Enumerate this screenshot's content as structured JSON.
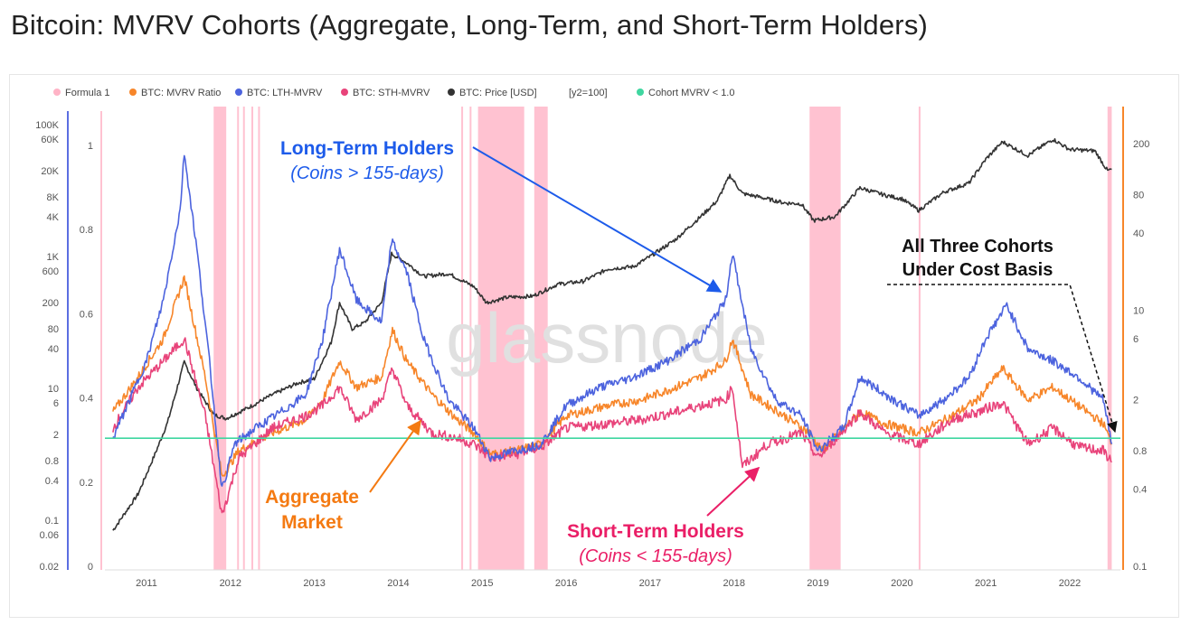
{
  "title": "Bitcoin: MVRV Cohorts (Aggregate, Long-Term, and Short-Term Holders)",
  "chart_data": {
    "type": "line",
    "title": "Bitcoin: MVRV Cohorts (Aggregate, Long-Term, and Short-Term Holders)",
    "legend": [
      {
        "name": "Formula 1",
        "color": "#ffb3c6"
      },
      {
        "name": "BTC: MVRV Ratio",
        "color": "#f7862a"
      },
      {
        "name": "BTC: LTH-MVRV",
        "color": "#4c63de"
      },
      {
        "name": "BTC: STH-MVRV",
        "color": "#e8437a"
      },
      {
        "name": "BTC: Price [USD]",
        "color": "#333333"
      },
      {
        "name": "[y2=100]",
        "color": ""
      },
      {
        "name": "Cohort MVRV < 1.0",
        "color": "#3fd6a0"
      }
    ],
    "x_ticks": [
      "2011",
      "2012",
      "2013",
      "2014",
      "2015",
      "2016",
      "2017",
      "2018",
      "2019",
      "2020",
      "2021",
      "2022"
    ],
    "y_price_ticks": [
      "100K",
      "60K",
      "20K",
      "8K",
      "4K",
      "1K",
      "600",
      "200",
      "80",
      "40",
      "10",
      "6",
      "2",
      "0.8",
      "0.4",
      "0.1",
      "0.06",
      "0.02"
    ],
    "y_formula_ticks": [
      "1",
      "0.8",
      "0.6",
      "0.4",
      "0.2",
      "0"
    ],
    "y_right_ticks": [
      "200",
      "80",
      "40",
      "10",
      "6",
      "2",
      "0.8",
      "0.4",
      "0.1"
    ],
    "watermark": "glassnode",
    "threshold": 1.0,
    "shaded_periods": [
      [
        2011.8,
        2011.95
      ],
      [
        2012.08,
        2012.1
      ],
      [
        2012.15,
        2012.17
      ],
      [
        2012.25,
        2012.27
      ],
      [
        2012.33,
        2012.35
      ],
      [
        2014.75,
        2014.77
      ],
      [
        2014.85,
        2014.87
      ],
      [
        2014.95,
        2015.5
      ],
      [
        2015.62,
        2015.78
      ],
      [
        2018.9,
        2019.27
      ],
      [
        2020.2,
        2020.22
      ],
      [
        2022.45,
        2022.5
      ]
    ],
    "series": [
      {
        "name": "BTC: Price [USD]",
        "points": [
          [
            2010.6,
            0.07
          ],
          [
            2010.9,
            0.25
          ],
          [
            2011.1,
            1
          ],
          [
            2011.25,
            3
          ],
          [
            2011.45,
            25
          ],
          [
            2011.6,
            10
          ],
          [
            2011.8,
            4
          ],
          [
            2011.95,
            3.5
          ],
          [
            2012.2,
            5
          ],
          [
            2012.5,
            8
          ],
          [
            2012.8,
            12
          ],
          [
            2013.0,
            14
          ],
          [
            2013.2,
            50
          ],
          [
            2013.3,
            200
          ],
          [
            2013.45,
            80
          ],
          [
            2013.6,
            100
          ],
          [
            2013.8,
            200
          ],
          [
            2013.92,
            1100
          ],
          [
            2014.1,
            800
          ],
          [
            2014.3,
            500
          ],
          [
            2014.6,
            550
          ],
          [
            2014.9,
            350
          ],
          [
            2015.05,
            200
          ],
          [
            2015.3,
            240
          ],
          [
            2015.6,
            250
          ],
          [
            2015.9,
            380
          ],
          [
            2016.2,
            420
          ],
          [
            2016.5,
            650
          ],
          [
            2016.8,
            700
          ],
          [
            2017.0,
            1000
          ],
          [
            2017.3,
            1800
          ],
          [
            2017.6,
            4000
          ],
          [
            2017.8,
            7000
          ],
          [
            2017.95,
            17000
          ],
          [
            2018.1,
            9000
          ],
          [
            2018.3,
            8000
          ],
          [
            2018.6,
            6500
          ],
          [
            2018.8,
            6300
          ],
          [
            2018.95,
            3500
          ],
          [
            2019.2,
            4000
          ],
          [
            2019.5,
            11000
          ],
          [
            2019.8,
            8500
          ],
          [
            2020.0,
            7500
          ],
          [
            2020.2,
            5000
          ],
          [
            2020.5,
            9500
          ],
          [
            2020.8,
            13000
          ],
          [
            2021.0,
            30000
          ],
          [
            2021.2,
            55000
          ],
          [
            2021.5,
            34000
          ],
          [
            2021.8,
            60000
          ],
          [
            2022.0,
            42000
          ],
          [
            2022.3,
            40000
          ],
          [
            2022.45,
            20000
          ],
          [
            2022.5,
            21000
          ]
        ]
      },
      {
        "name": "BTC: LTH-MVRV",
        "points": [
          [
            2010.6,
            1
          ],
          [
            2010.8,
            2
          ],
          [
            2011.0,
            4
          ],
          [
            2011.2,
            12
          ],
          [
            2011.4,
            60
          ],
          [
            2011.45,
            170
          ],
          [
            2011.6,
            30
          ],
          [
            2011.75,
            4
          ],
          [
            2011.9,
            0.4
          ],
          [
            2012.05,
            0.9
          ],
          [
            2012.3,
            1.2
          ],
          [
            2012.6,
            1.6
          ],
          [
            2012.9,
            2.2
          ],
          [
            2013.1,
            6
          ],
          [
            2013.3,
            30
          ],
          [
            2013.5,
            12
          ],
          [
            2013.8,
            8
          ],
          [
            2013.92,
            35
          ],
          [
            2014.1,
            20
          ],
          [
            2014.3,
            6
          ],
          [
            2014.6,
            2
          ],
          [
            2014.9,
            1.2
          ],
          [
            2015.1,
            0.7
          ],
          [
            2015.4,
            0.8
          ],
          [
            2015.7,
            0.9
          ],
          [
            2016.0,
            1.8
          ],
          [
            2016.4,
            2.5
          ],
          [
            2016.8,
            3
          ],
          [
            2017.2,
            4
          ],
          [
            2017.6,
            6
          ],
          [
            2017.9,
            12
          ],
          [
            2017.98,
            28
          ],
          [
            2018.2,
            5
          ],
          [
            2018.5,
            2
          ],
          [
            2018.8,
            1.5
          ],
          [
            2019.0,
            0.8
          ],
          [
            2019.3,
            1.2
          ],
          [
            2019.5,
            3
          ],
          [
            2019.8,
            2.2
          ],
          [
            2020.2,
            1.5
          ],
          [
            2020.5,
            2
          ],
          [
            2020.8,
            3
          ],
          [
            2021.0,
            6
          ],
          [
            2021.25,
            11
          ],
          [
            2021.5,
            5
          ],
          [
            2021.8,
            4
          ],
          [
            2022.1,
            3
          ],
          [
            2022.4,
            2
          ],
          [
            2022.5,
            0.9
          ]
        ]
      },
      {
        "name": "BTC: MVRV Ratio",
        "points": [
          [
            2010.6,
            1.6
          ],
          [
            2010.9,
            3
          ],
          [
            2011.2,
            6
          ],
          [
            2011.45,
            18
          ],
          [
            2011.7,
            3
          ],
          [
            2011.9,
            0.5
          ],
          [
            2012.1,
            0.8
          ],
          [
            2012.5,
            1.1
          ],
          [
            2012.9,
            1.4
          ],
          [
            2013.1,
            2
          ],
          [
            2013.3,
            4
          ],
          [
            2013.5,
            2.5
          ],
          [
            2013.8,
            3
          ],
          [
            2013.93,
            7
          ],
          [
            2014.1,
            4
          ],
          [
            2014.4,
            2.2
          ],
          [
            2014.7,
            1.4
          ],
          [
            2014.9,
            1.1
          ],
          [
            2015.1,
            0.75
          ],
          [
            2015.4,
            0.8
          ],
          [
            2015.7,
            0.9
          ],
          [
            2016.0,
            1.5
          ],
          [
            2016.5,
            1.8
          ],
          [
            2016.9,
            2
          ],
          [
            2017.3,
            2.5
          ],
          [
            2017.6,
            3
          ],
          [
            2017.9,
            4
          ],
          [
            2017.98,
            6
          ],
          [
            2018.2,
            2.2
          ],
          [
            2018.6,
            1.5
          ],
          [
            2018.9,
            1.1
          ],
          [
            2019.05,
            0.8
          ],
          [
            2019.5,
            1.6
          ],
          [
            2019.8,
            1.3
          ],
          [
            2020.2,
            1.1
          ],
          [
            2020.6,
            1.5
          ],
          [
            2020.9,
            2
          ],
          [
            2021.2,
            3.5
          ],
          [
            2021.5,
            2
          ],
          [
            2021.8,
            2.5
          ],
          [
            2022.1,
            1.8
          ],
          [
            2022.4,
            1.3
          ],
          [
            2022.5,
            0.9
          ]
        ]
      },
      {
        "name": "BTC: STH-MVRV",
        "points": [
          [
            2010.6,
            1.2
          ],
          [
            2010.9,
            2.5
          ],
          [
            2011.2,
            4
          ],
          [
            2011.45,
            6
          ],
          [
            2011.7,
            1.5
          ],
          [
            2011.9,
            0.25
          ],
          [
            2012.1,
            0.7
          ],
          [
            2012.5,
            1.2
          ],
          [
            2012.9,
            1.5
          ],
          [
            2013.1,
            1.8
          ],
          [
            2013.3,
            2.5
          ],
          [
            2013.5,
            1.4
          ],
          [
            2013.8,
            2
          ],
          [
            2013.93,
            3.5
          ],
          [
            2014.1,
            1.8
          ],
          [
            2014.4,
            1.1
          ],
          [
            2014.7,
            1
          ],
          [
            2014.9,
            0.9
          ],
          [
            2015.1,
            0.7
          ],
          [
            2015.4,
            0.75
          ],
          [
            2015.7,
            0.85
          ],
          [
            2016.0,
            1.2
          ],
          [
            2016.5,
            1.3
          ],
          [
            2016.9,
            1.4
          ],
          [
            2017.3,
            1.6
          ],
          [
            2017.6,
            1.8
          ],
          [
            2017.9,
            2
          ],
          [
            2017.98,
            2.5
          ],
          [
            2018.1,
            0.6
          ],
          [
            2018.4,
            0.9
          ],
          [
            2018.8,
            1.1
          ],
          [
            2019.0,
            0.7
          ],
          [
            2019.5,
            1.6
          ],
          [
            2019.8,
            1.1
          ],
          [
            2020.2,
            0.9
          ],
          [
            2020.6,
            1.4
          ],
          [
            2020.9,
            1.6
          ],
          [
            2021.2,
            1.9
          ],
          [
            2021.5,
            0.9
          ],
          [
            2021.8,
            1.2
          ],
          [
            2022.1,
            0.85
          ],
          [
            2022.4,
            0.8
          ],
          [
            2022.5,
            0.65
          ]
        ]
      }
    ]
  },
  "annotations": {
    "lth_title": "Long-Term Holders",
    "lth_sub": "(Coins > 155-days)",
    "agg_line1": "Aggregate",
    "agg_line2": "Market",
    "sth_title": "Short-Term Holders",
    "sth_sub": "(Coins < 155-days)",
    "all_line1": "All Three Cohorts",
    "all_line2": "Under Cost Basis"
  }
}
